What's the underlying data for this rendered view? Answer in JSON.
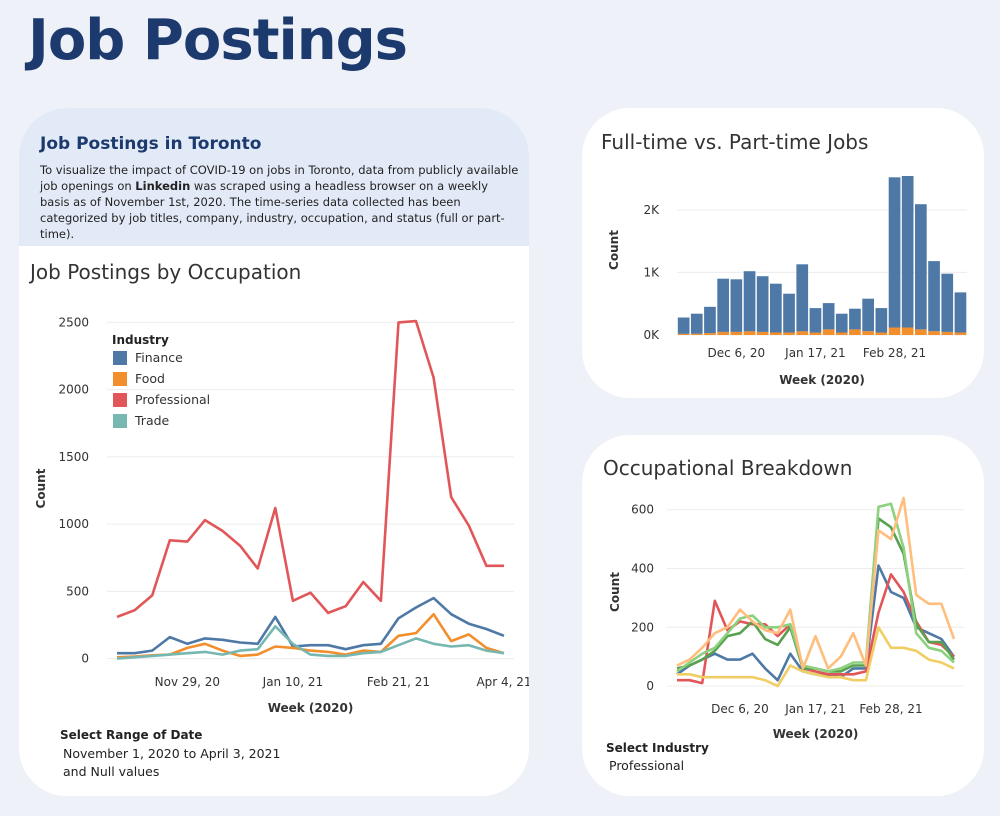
{
  "page": {
    "title": "Job Postings"
  },
  "intro": {
    "title": "Job Postings in Toronto",
    "text_before": "To visualize the impact of COVID-19 on jobs in Toronto, data from publicly available job openings on ",
    "text_bold": "Linkedin",
    "text_after": " was scraped using a headless browser on a weekly basis as of November 1st, 2020. The time-series data collected has been categorized by job titles, company, industry, occupation, and status (full or part-time)."
  },
  "filters": {
    "date": {
      "label": "Select Range of Date",
      "line1": "November 1, 2020 to April 3, 2021",
      "line2": "and Null values"
    },
    "industry": {
      "label": "Select Industry",
      "value": "Professional"
    }
  },
  "colors": {
    "finance": "#4e79a7",
    "food": "#f28e2b",
    "professional": "#e15759",
    "trade": "#76b7b2",
    "green_light": "#8cd17d",
    "green_dark": "#59a14f",
    "orange_light": "#ffbe7d",
    "yellow": "#f1ce63"
  },
  "chart_data": [
    {
      "id": "occupation",
      "type": "line",
      "title": "Job Postings by Occupation",
      "xlabel": "Week (2020)",
      "ylabel": "Count",
      "ylim": [
        -40,
        2570
      ],
      "yticks": [
        0,
        500,
        1000,
        1500,
        2000,
        2500
      ],
      "xticks": [
        {
          "index": 4,
          "label": "Nov 29, 20"
        },
        {
          "index": 10,
          "label": "Jan 10, 21"
        },
        {
          "index": 16,
          "label": "Feb 21, 21"
        },
        {
          "index": 22,
          "label": "Apr 4, 21"
        }
      ],
      "legend": {
        "title": "Industry",
        "position": "top-left"
      },
      "x_count": 23,
      "series": [
        {
          "name": "Finance",
          "color": "#4e79a7",
          "values": [
            40,
            40,
            60,
            160,
            110,
            150,
            140,
            120,
            110,
            310,
            90,
            100,
            100,
            70,
            100,
            110,
            300,
            380,
            450,
            330,
            260,
            220,
            170
          ]
        },
        {
          "name": "Food",
          "color": "#f28e2b",
          "values": [
            10,
            15,
            25,
            30,
            80,
            110,
            60,
            20,
            30,
            90,
            80,
            60,
            50,
            30,
            60,
            50,
            170,
            190,
            330,
            130,
            180,
            80,
            40
          ]
        },
        {
          "name": "Professional",
          "color": "#e15759",
          "values": [
            310,
            360,
            470,
            880,
            870,
            1030,
            950,
            840,
            670,
            1120,
            430,
            490,
            340,
            390,
            570,
            430,
            2500,
            2510,
            2090,
            1200,
            990,
            690,
            690
          ]
        },
        {
          "name": "Trade",
          "color": "#76b7b2",
          "values": [
            0,
            10,
            20,
            30,
            40,
            50,
            30,
            60,
            70,
            240,
            110,
            30,
            20,
            20,
            40,
            50,
            100,
            150,
            110,
            90,
            100,
            60,
            40
          ]
        }
      ]
    },
    {
      "id": "fulltime",
      "type": "bar",
      "title": "Full-time vs. Part-time Jobs",
      "xlabel": "Week (2020)",
      "ylabel": "Count",
      "ylim": [
        0,
        2700
      ],
      "yticks": [
        {
          "v": 0,
          "label": "0K"
        },
        {
          "v": 1000,
          "label": "1K"
        },
        {
          "v": 2000,
          "label": "2K"
        }
      ],
      "xticks": [
        {
          "index": 4,
          "label": "Dec 6, 20"
        },
        {
          "index": 10,
          "label": "Jan 17, 21"
        },
        {
          "index": 16,
          "label": "Feb 28, 21"
        }
      ],
      "series": [
        {
          "name": "Full-time",
          "color": "#4e79a7",
          "values": [
            260,
            320,
            420,
            850,
            840,
            960,
            890,
            780,
            620,
            1070,
            390,
            420,
            300,
            330,
            520,
            390,
            2400,
            2420,
            2000,
            1120,
            930,
            640
          ]
        },
        {
          "name": "Part-time",
          "color": "#f28e2b",
          "values": [
            20,
            20,
            30,
            50,
            50,
            60,
            50,
            40,
            40,
            60,
            40,
            90,
            40,
            90,
            60,
            40,
            120,
            120,
            90,
            60,
            50,
            40
          ]
        }
      ]
    },
    {
      "id": "breakdown",
      "type": "line",
      "title": "Occupational Breakdown",
      "xlabel": "Week (2020)",
      "ylabel": "Count",
      "ylim": [
        -10,
        650
      ],
      "yticks": [
        0,
        200,
        400,
        600
      ],
      "xticks": [
        {
          "index": 5,
          "label": "Dec 6, 20"
        },
        {
          "index": 11,
          "label": "Jan 17, 21"
        },
        {
          "index": 17,
          "label": "Feb 28, 21"
        }
      ],
      "x_count": 23,
      "series": [
        {
          "name": "",
          "color": "#4e79a7",
          "values": [
            40,
            70,
            90,
            110,
            90,
            90,
            110,
            60,
            20,
            110,
            50,
            40,
            35,
            30,
            60,
            60,
            410,
            320,
            300,
            200,
            180,
            160,
            100
          ]
        },
        {
          "name": "",
          "color": "#e15759",
          "values": [
            20,
            20,
            10,
            290,
            190,
            220,
            210,
            210,
            170,
            210,
            60,
            50,
            40,
            40,
            40,
            50,
            250,
            380,
            320,
            220,
            150,
            140,
            100
          ]
        },
        {
          "name": "",
          "color": "#59a14f",
          "values": [
            60,
            70,
            90,
            120,
            170,
            180,
            220,
            160,
            140,
            200,
            60,
            60,
            50,
            50,
            70,
            70,
            570,
            540,
            450,
            210,
            150,
            150,
            90
          ]
        },
        {
          "name": "",
          "color": "#8cd17d",
          "values": [
            50,
            80,
            110,
            130,
            180,
            230,
            240,
            200,
            200,
            210,
            70,
            60,
            50,
            60,
            80,
            80,
            610,
            620,
            470,
            180,
            130,
            120,
            80
          ]
        },
        {
          "name": "",
          "color": "#ffbe7d",
          "values": [
            70,
            90,
            130,
            180,
            200,
            260,
            220,
            190,
            180,
            260,
            60,
            170,
            60,
            100,
            180,
            70,
            530,
            500,
            640,
            310,
            280,
            280,
            160
          ]
        },
        {
          "name": "",
          "color": "#f1ce63",
          "values": [
            40,
            40,
            30,
            30,
            30,
            30,
            30,
            20,
            0,
            70,
            50,
            40,
            30,
            30,
            20,
            20,
            200,
            130,
            130,
            120,
            90,
            80,
            60
          ]
        }
      ]
    }
  ]
}
